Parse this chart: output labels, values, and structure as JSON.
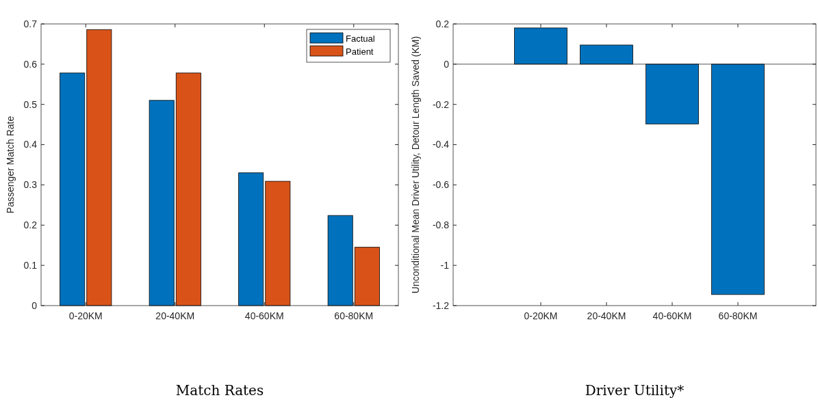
{
  "chart_data": [
    {
      "type": "bar",
      "title": "Match Rates",
      "ylabel": "Passenger Match Rate",
      "categories": [
        "0-20KM",
        "20-40KM",
        "40-60KM",
        "60-80KM"
      ],
      "series": [
        {
          "name": "Factual",
          "color": "#0072bd",
          "values": [
            0.578,
            0.51,
            0.33,
            0.224
          ]
        },
        {
          "name": "Patient",
          "color": "#d95319",
          "values": [
            0.686,
            0.578,
            0.309,
            0.145
          ]
        }
      ],
      "ylim": [
        0,
        0.7
      ],
      "yticks": [
        0,
        0.1,
        0.2,
        0.3,
        0.4,
        0.5,
        0.6,
        0.7
      ],
      "legend": "top right",
      "grid": false
    },
    {
      "type": "bar",
      "title": "Driver Utility*",
      "ylabel": "Unconditional Mean Driver Utility, Detour Length Saved (KM)",
      "categories": [
        "0-20KM",
        "20-40KM",
        "40-60KM",
        "60-80KM"
      ],
      "series": [
        {
          "color": "#0072bd",
          "values": [
            0.18,
            0.095,
            -0.297,
            -1.145
          ]
        }
      ],
      "ylim": [
        -1.2,
        0.2
      ],
      "yticks": [
        -1.2,
        -1,
        -0.8,
        -0.6,
        -0.4,
        -0.2,
        0,
        0.2
      ],
      "ref_lines": [
        {
          "axis": "y",
          "value": 0,
          "color": "#262626"
        }
      ],
      "legend": false,
      "grid": false
    }
  ]
}
